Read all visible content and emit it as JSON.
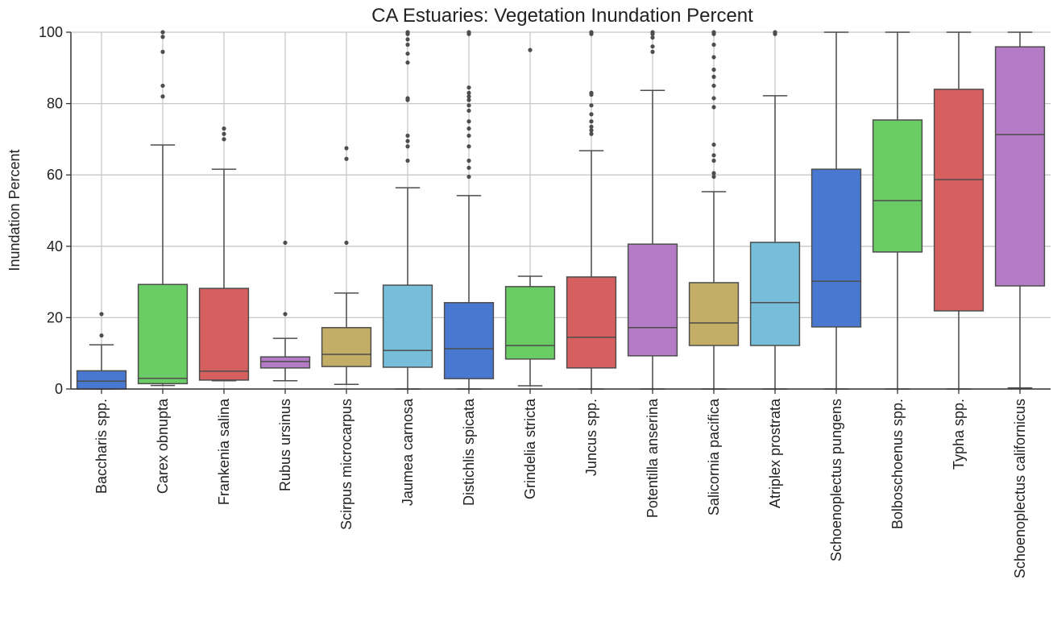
{
  "chart_data": {
    "type": "box",
    "title": "CA Estuaries: Vegetation Inundation Percent",
    "y_label": "Inundation Percent",
    "categories": [
      "Baccharis spp.",
      "Carex obnupta",
      "Frankenia salina",
      "Rubus ursinus",
      "Scirpus microcarpus",
      "Jaumea carnosa",
      "Distichlis spicata",
      "Grindelia stricta",
      "Juncus spp.",
      "Potentilla anserina",
      "Salicornia pacifica",
      "Atriplex prostrata",
      "Schoenoplectus pungens",
      "Bolboschoenus spp.",
      "Typha spp.",
      "Schoenoplectus californicus"
    ],
    "boxes": [
      {
        "color": "#4878cf",
        "low": 0,
        "q1": 0,
        "median": 2.2,
        "q3": 5.1,
        "high": 12.4,
        "outliers": [
          15,
          21
        ]
      },
      {
        "color": "#6acc65",
        "low": 1,
        "q1": 1.5,
        "median": 3,
        "q3": 29.3,
        "high": 68.4,
        "outliers": [
          82,
          85,
          94.5,
          98.7,
          100
        ]
      },
      {
        "color": "#d65f5f",
        "low": 2.3,
        "q1": 2.5,
        "median": 5,
        "q3": 28.2,
        "high": 61.6,
        "outliers": [
          70,
          71.5,
          73
        ]
      },
      {
        "color": "#b47cc7",
        "low": 2.3,
        "q1": 5.9,
        "median": 7.7,
        "q3": 9,
        "high": 14.2,
        "outliers": [
          21,
          41
        ]
      },
      {
        "color": "#c4ad66",
        "low": 1.3,
        "q1": 6.3,
        "median": 9.7,
        "q3": 17.2,
        "high": 26.9,
        "outliers": [
          41,
          64.5,
          67.5
        ]
      },
      {
        "color": "#77bedb",
        "low": 0,
        "q1": 6.1,
        "median": 10.8,
        "q3": 29.1,
        "high": 56.4,
        "outliers": [
          64,
          68,
          69.5,
          71,
          81,
          81.5,
          91.5,
          94,
          96.5,
          98,
          99.5,
          100
        ]
      },
      {
        "color": "#4878cf",
        "low": 0,
        "q1": 2.9,
        "median": 11.3,
        "q3": 24.2,
        "high": 54.2,
        "outliers": [
          59.5,
          62,
          64,
          68,
          71,
          73,
          75,
          78,
          79.5,
          81,
          82,
          83,
          84.5,
          99.5,
          100
        ]
      },
      {
        "color": "#6acc65",
        "low": 0.9,
        "q1": 8.4,
        "median": 12.2,
        "q3": 28.7,
        "high": 31.6,
        "outliers": [
          95
        ]
      },
      {
        "color": "#d65f5f",
        "low": 0,
        "q1": 5.9,
        "median": 14.5,
        "q3": 31.4,
        "high": 66.8,
        "outliers": [
          71.5,
          72.5,
          73.5,
          75,
          77,
          79.5,
          82.5,
          83,
          99.5,
          100
        ]
      },
      {
        "color": "#b47cc7",
        "low": 0,
        "q1": 9.3,
        "median": 17.2,
        "q3": 40.6,
        "high": 83.7,
        "outliers": [
          94.5,
          96,
          98.5,
          99.5,
          100
        ]
      },
      {
        "color": "#c4ad66",
        "low": 0,
        "q1": 12.2,
        "median": 18.5,
        "q3": 29.8,
        "high": 55.3,
        "outliers": [
          59.5,
          60.5,
          64,
          65.5,
          68.5,
          79,
          81.5,
          85,
          87.5,
          89.5,
          93,
          96.5,
          99.5,
          100
        ]
      },
      {
        "color": "#77bedb",
        "low": 0,
        "q1": 12.2,
        "median": 24.2,
        "q3": 41.1,
        "high": 82.2,
        "outliers": [
          99.5,
          100
        ]
      },
      {
        "color": "#4878cf",
        "low": 0,
        "q1": 17.4,
        "median": 30.2,
        "q3": 61.6,
        "high": 100,
        "outliers": []
      },
      {
        "color": "#6acc65",
        "low": 0,
        "q1": 38.4,
        "median": 52.8,
        "q3": 75.4,
        "high": 100,
        "outliers": []
      },
      {
        "color": "#d65f5f",
        "low": 0,
        "q1": 21.9,
        "median": 58.7,
        "q3": 84,
        "high": 100,
        "outliers": []
      },
      {
        "color": "#b47cc7",
        "low": 0.3,
        "q1": 28.9,
        "median": 71.3,
        "q3": 95.9,
        "high": 100,
        "outliers": []
      }
    ],
    "ylim": [
      0,
      100
    ],
    "yticks": [
      0,
      20,
      40,
      60,
      80,
      100
    ],
    "grid": true
  }
}
